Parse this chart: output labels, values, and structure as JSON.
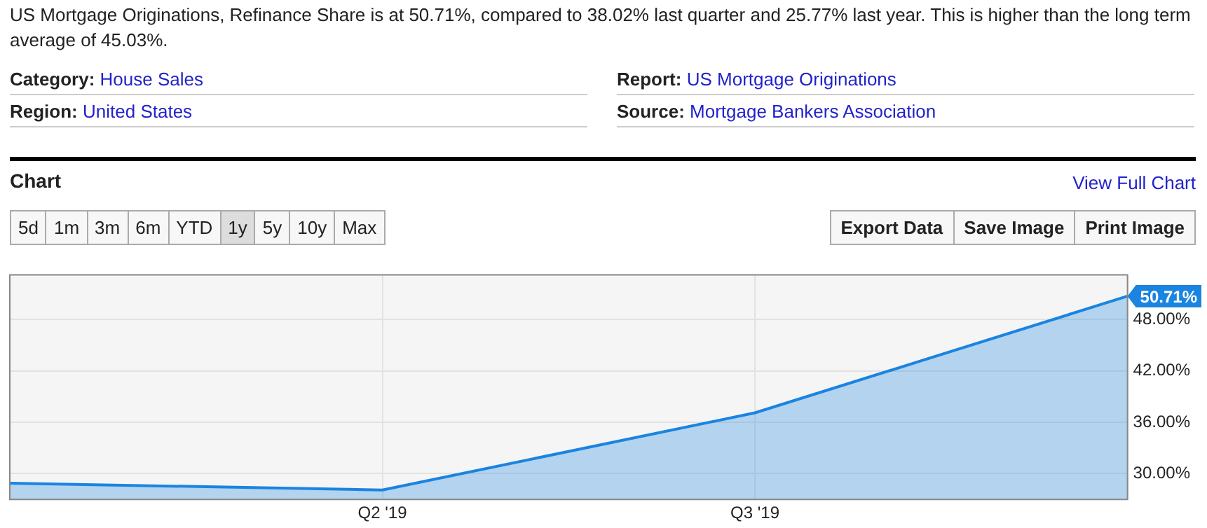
{
  "chart_data": {
    "type": "area",
    "title": "US Mortgage Originations, Refinance Share is at 50.71%, compared to 38.02% last quarter and 25.77% last year. This is higher than the long term average of 45.03%.",
    "annotations": [
      "Category: House Sales",
      "Report: US Mortgage Originations",
      "Region: United States",
      "Source: Mortgage Bankers Association",
      "Chart",
      "View Full Chart",
      "5d",
      "1m",
      "3m",
      "6m",
      "YTD",
      "1y",
      "5y",
      "10y",
      "Max",
      "Export Data",
      "Save Image",
      "Print Image"
    ],
    "categories": [
      null,
      "Q2 '19",
      "Q3 '19",
      null
    ],
    "series": [
      {
        "color": "#1a84e0",
        "values": [
          28.9,
          28.1,
          37.1,
          50.71
        ],
        "value_labels": [
          null,
          null,
          null,
          "50.71%"
        ]
      }
    ],
    "ylim": [
      27,
      53.2
    ],
    "yticks": [
      {
        "value": 30,
        "label": "30.00%"
      },
      {
        "value": 36,
        "label": "36.00%"
      },
      {
        "value": 42,
        "label": "42.00%"
      },
      {
        "value": 48,
        "label": "48.00%"
      }
    ],
    "grid": true,
    "legend": false
  }
}
